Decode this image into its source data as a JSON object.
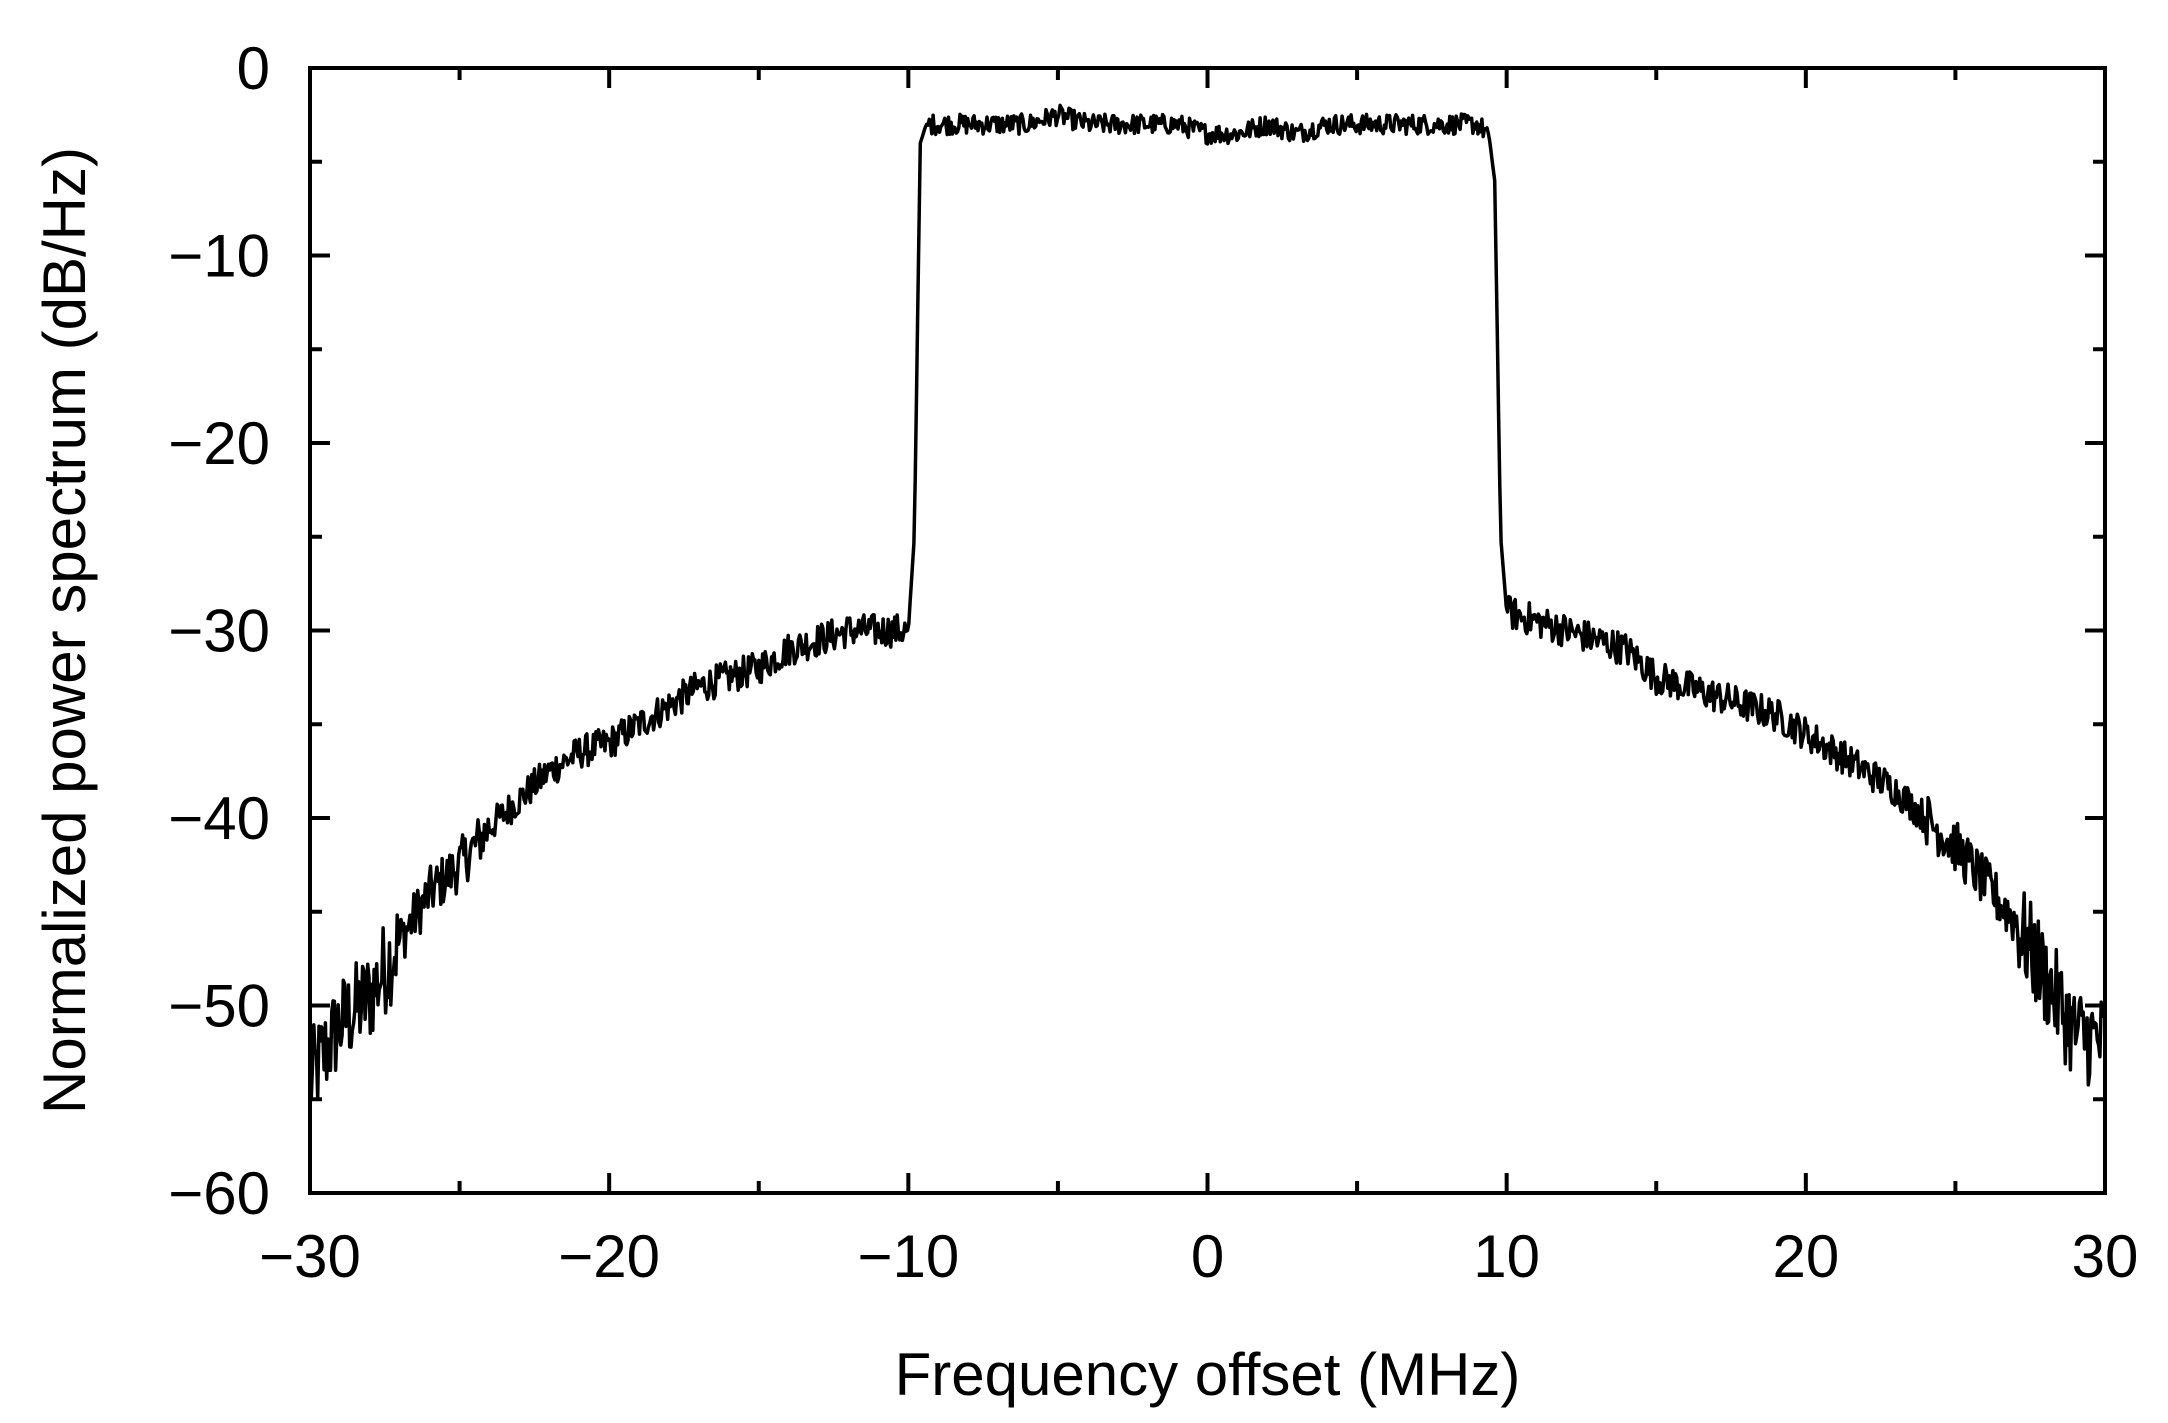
{
  "chart_data": {
    "type": "line",
    "title": "",
    "xlabel": "Frequency offset (MHz)",
    "ylabel": "Normalized power spectrum  (dB/Hz)",
    "xlim": [
      -30,
      30
    ],
    "ylim": [
      -60,
      0
    ],
    "xticks": [
      -30,
      -20,
      -10,
      0,
      10,
      20,
      30
    ],
    "xtick_labels": [
      "−30",
      "−20",
      "−10",
      "0",
      "10",
      "20",
      "30"
    ],
    "xminor_step": 5,
    "yticks": [
      0,
      -10,
      -20,
      -30,
      -40,
      -50,
      -60
    ],
    "ytick_labels": [
      "0",
      "−10",
      "−20",
      "−30",
      "−40",
      "−50",
      "−60"
    ],
    "yminor_step": 5,
    "grid": false,
    "legend": "none",
    "colors": {
      "line": "#000000",
      "axes": "#000000"
    },
    "series": [
      {
        "x": [
          -30,
          -29,
          -28,
          -27,
          -26,
          -25,
          -24,
          -23,
          -22,
          -21,
          -20,
          -19,
          -18,
          -17,
          -16,
          -15,
          -14,
          -13,
          -12,
          -11,
          -10,
          -9.8,
          -9.6,
          -9.4,
          -9,
          -8,
          -7,
          -6,
          -5,
          -4,
          -3,
          -2,
          -1,
          0,
          1,
          2,
          3,
          4,
          5,
          6,
          7,
          8,
          9,
          9.4,
          9.6,
          9.8,
          10,
          11,
          12,
          13,
          14,
          15,
          16,
          17,
          18,
          19,
          20,
          21,
          22,
          23,
          24,
          25,
          26,
          27,
          28,
          29,
          30
        ],
        "values": [
          -54,
          -51,
          -49.5,
          -46.5,
          -44,
          -42.5,
          -40.5,
          -39,
          -37.5,
          -36.5,
          -36,
          -35,
          -34,
          -33,
          -32.5,
          -32,
          -31,
          -30.5,
          -30,
          -30,
          -30,
          -25,
          -4,
          -3,
          -3,
          -3,
          -3,
          -3,
          -2.5,
          -3,
          -3,
          -3,
          -3,
          -3.5,
          -3.5,
          -3,
          -3.5,
          -3,
          -3,
          -3,
          -3,
          -3,
          -3,
          -3.5,
          -6,
          -25,
          -29,
          -29.5,
          -30,
          -30.5,
          -31,
          -32.5,
          -33,
          -33.5,
          -34,
          -34.5,
          -35.5,
          -36.5,
          -37.5,
          -38.5,
          -40,
          -41.5,
          -43.5,
          -45.5,
          -48.5,
          -51.5,
          -52
        ]
      }
    ]
  }
}
